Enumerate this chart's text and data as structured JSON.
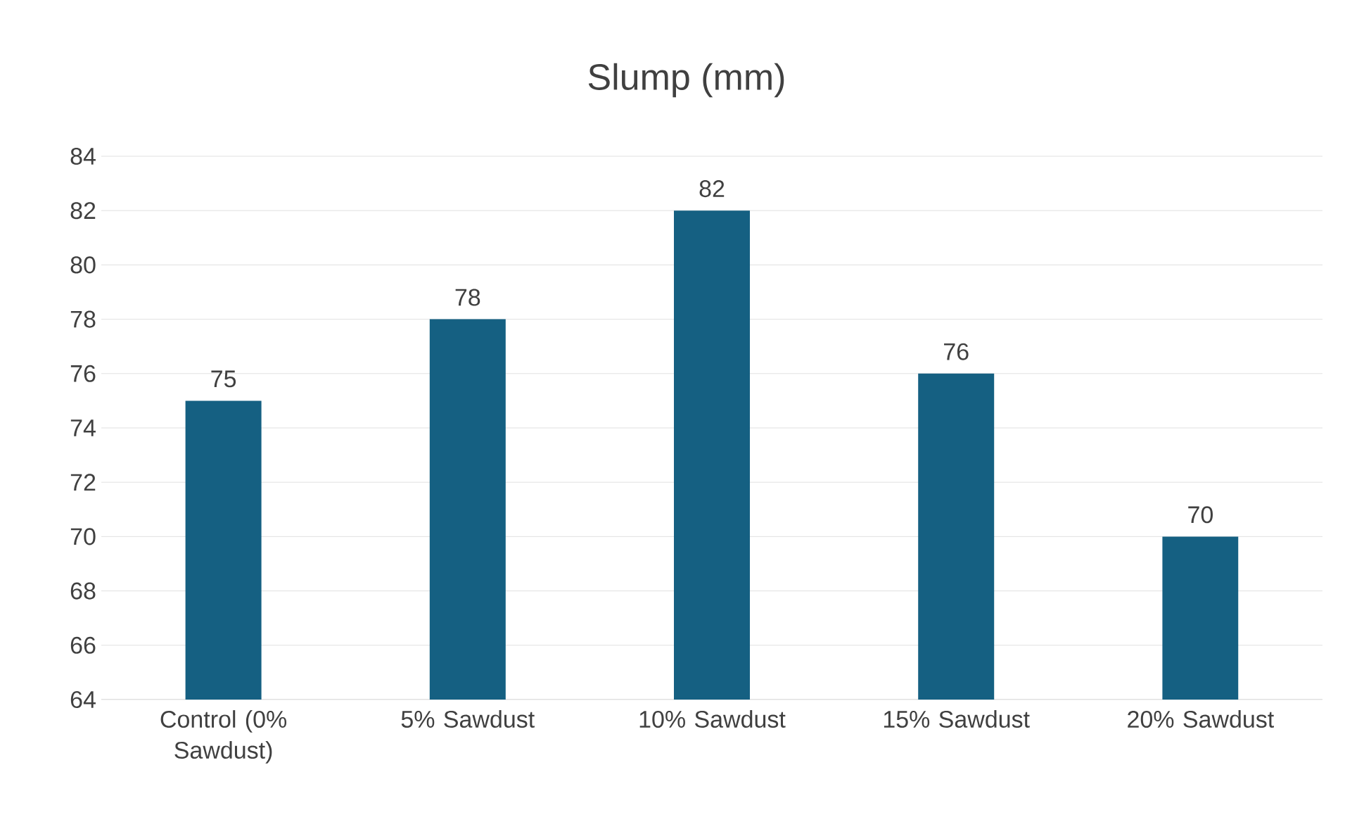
{
  "chart_data": {
    "type": "bar",
    "title": "Slump (mm)",
    "categories": [
      "Control (0% Sawdust)",
      "5% Sawdust",
      "10% Sawdust",
      "15% Sawdust",
      "20% Sawdust"
    ],
    "values": [
      75,
      78,
      82,
      76,
      70
    ],
    "color": "#156082",
    "ylim": [
      64,
      84
    ],
    "yticks": [
      64,
      66,
      68,
      70,
      72,
      74,
      76,
      78,
      80,
      82,
      84
    ],
    "grid": "y",
    "data_labels": true
  }
}
